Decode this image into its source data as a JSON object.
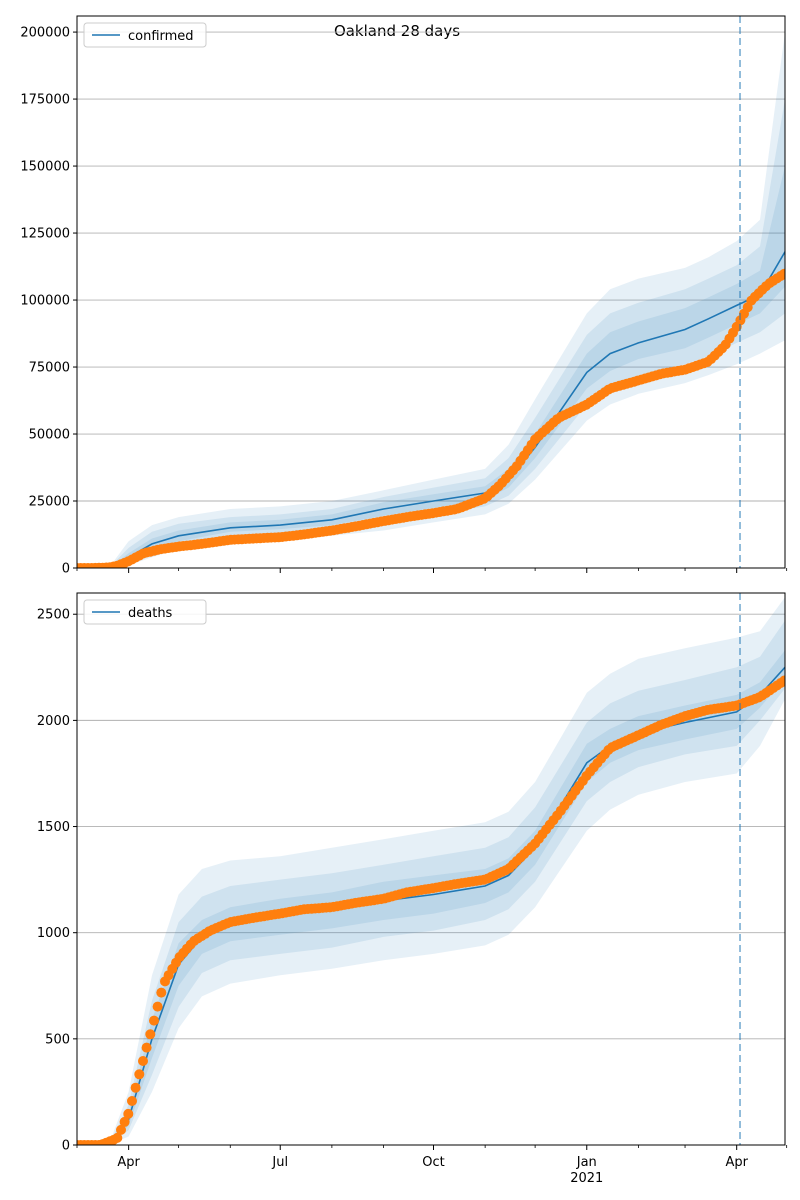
{
  "title": "Oakland 28 days",
  "colors": {
    "model": "#1f77b4",
    "observed": "#ff7f0e",
    "band": "#1f77b4",
    "grid": "#b0b0b0",
    "forecast_line": "#1f77b4"
  },
  "x_axis": {
    "start": "2020-03-01",
    "end": "2021-04-30",
    "major_ticks": [
      {
        "date": "2020-04-01",
        "label": "Apr",
        "sublabel": ""
      },
      {
        "date": "2020-07-01",
        "label": "Jul",
        "sublabel": ""
      },
      {
        "date": "2020-10-01",
        "label": "Oct",
        "sublabel": ""
      },
      {
        "date": "2021-01-01",
        "label": "Jan",
        "sublabel": "2021"
      },
      {
        "date": "2021-04-01",
        "label": "Apr",
        "sublabel": ""
      }
    ],
    "minor_ticks": [
      "2020-03-01",
      "2020-05-01",
      "2020-06-01",
      "2020-08-01",
      "2020-09-01",
      "2020-11-01",
      "2020-12-01",
      "2021-02-01",
      "2021-03-01",
      "2021-05-01"
    ]
  },
  "forecast_date": "2021-04-03",
  "chart_data": [
    {
      "type": "line",
      "legend": {
        "position": "upper-left",
        "entries": [
          "confirmed"
        ]
      },
      "ylim": [
        0,
        206000
      ],
      "yticks": [
        0,
        25000,
        50000,
        75000,
        100000,
        125000,
        150000,
        175000,
        200000
      ],
      "ytick_labels": [
        "0",
        "25000",
        "50000",
        "75000",
        "100000",
        "125000",
        "150000",
        "175000",
        "200000"
      ],
      "grid": true,
      "series": [
        {
          "name": "confirmed",
          "kind": "model",
          "x": [
            "2020-03-01",
            "2020-03-20",
            "2020-04-01",
            "2020-04-15",
            "2020-05-01",
            "2020-06-01",
            "2020-07-01",
            "2020-08-01",
            "2020-09-01",
            "2020-10-01",
            "2020-11-01",
            "2020-11-15",
            "2020-12-01",
            "2021-01-01",
            "2021-01-15",
            "2021-02-01",
            "2021-03-01",
            "2021-03-15",
            "2021-04-01",
            "2021-04-15",
            "2021-04-30"
          ],
          "y": [
            0,
            0,
            4000,
            9000,
            12000,
            15000,
            16000,
            18000,
            22000,
            25000,
            28000,
            33000,
            45000,
            73000,
            80000,
            84000,
            89000,
            93000,
            98000,
            102000,
            118000
          ],
          "bands": [
            {
              "lower": [
                0,
                0,
                1000,
                4000,
                7000,
                10000,
                11000,
                12000,
                14000,
                17000,
                20000,
                24000,
                33000,
                55000,
                61000,
                65000,
                69000,
                72000,
                76000,
                80000,
                85000
              ],
              "upper": [
                0,
                0,
                10000,
                16000,
                19000,
                22000,
                23000,
                25000,
                29000,
                33000,
                37000,
                46000,
                63000,
                95000,
                104000,
                108000,
                112000,
                116000,
                122000,
                130000,
                200000
              ]
            },
            {
              "lower": [
                0,
                0,
                2000,
                5500,
                8500,
                12000,
                13000,
                14500,
                17000,
                20000,
                23000,
                27000,
                37000,
                61000,
                67000,
                71000,
                76000,
                79000,
                84000,
                88000,
                95000
              ],
              "upper": [
                0,
                0,
                7500,
                13500,
                16500,
                19000,
                20000,
                22000,
                26500,
                30000,
                33500,
                41000,
                56000,
                87000,
                95000,
                99000,
                104000,
                108000,
                113000,
                120000,
                175000
              ]
            },
            {
              "lower": [
                0,
                0,
                3000,
                7000,
                10000,
                13500,
                14500,
                16000,
                19500,
                22500,
                25500,
                30000,
                41000,
                67000,
                73500,
                78000,
                82000,
                86000,
                91000,
                95000,
                105000
              ],
              "upper": [
                0,
                0,
                5500,
                11000,
                14000,
                17000,
                18000,
                20000,
                24500,
                27500,
                30500,
                37000,
                50000,
                80000,
                88000,
                92000,
                97000,
                101000,
                106000,
                111000,
                150000
              ]
            }
          ]
        },
        {
          "name": "",
          "kind": "observed",
          "x": [
            "2020-03-01",
            "2020-03-10",
            "2020-03-20",
            "2020-03-25",
            "2020-04-01",
            "2020-04-10",
            "2020-04-20",
            "2020-05-01",
            "2020-05-15",
            "2020-06-01",
            "2020-06-15",
            "2020-07-01",
            "2020-07-15",
            "2020-08-01",
            "2020-08-15",
            "2020-09-01",
            "2020-09-15",
            "2020-10-01",
            "2020-10-15",
            "2020-11-01",
            "2020-11-10",
            "2020-11-20",
            "2020-12-01",
            "2020-12-15",
            "2021-01-01",
            "2021-01-15",
            "2021-02-01",
            "2021-02-15",
            "2021-03-01",
            "2021-03-15",
            "2021-03-25",
            "2021-04-01",
            "2021-04-10",
            "2021-04-20",
            "2021-04-30"
          ],
          "y": [
            0,
            0,
            200,
            800,
            2500,
            5500,
            7000,
            8000,
            9000,
            10500,
            11000,
            11500,
            12500,
            14000,
            15500,
            17500,
            19000,
            20500,
            22000,
            26000,
            31000,
            38000,
            48000,
            56000,
            61000,
            67000,
            70000,
            72500,
            74000,
            77000,
            83000,
            90000,
            100000,
            106000,
            110000
          ]
        }
      ]
    },
    {
      "type": "line",
      "legend": {
        "position": "upper-left",
        "entries": [
          "deaths"
        ]
      },
      "ylim": [
        0,
        2600
      ],
      "yticks": [
        0,
        500,
        1000,
        1500,
        2000,
        2500
      ],
      "ytick_labels": [
        "0",
        "500",
        "1000",
        "1500",
        "2000",
        "2500"
      ],
      "grid": true,
      "series": [
        {
          "name": "deaths",
          "kind": "model",
          "x": [
            "2020-03-01",
            "2020-03-20",
            "2020-04-01",
            "2020-04-15",
            "2020-05-01",
            "2020-05-15",
            "2020-06-01",
            "2020-07-01",
            "2020-08-01",
            "2020-09-01",
            "2020-10-01",
            "2020-11-01",
            "2020-11-15",
            "2020-12-01",
            "2021-01-01",
            "2021-01-15",
            "2021-02-01",
            "2021-03-01",
            "2021-04-01",
            "2021-04-15",
            "2021-04-30"
          ],
          "y": [
            0,
            0,
            120,
            500,
            850,
            980,
            1040,
            1080,
            1110,
            1150,
            1180,
            1220,
            1270,
            1400,
            1800,
            1880,
            1940,
            1990,
            2040,
            2120,
            2250
          ],
          "bands": [
            {
              "lower": [
                0,
                0,
                40,
                250,
                550,
                700,
                760,
                800,
                830,
                870,
                900,
                940,
                990,
                1120,
                1480,
                1580,
                1650,
                1710,
                1750,
                1880,
                2100
              ],
              "upper": [
                0,
                0,
                250,
                800,
                1180,
                1300,
                1340,
                1360,
                1400,
                1440,
                1480,
                1520,
                1570,
                1710,
                2130,
                2220,
                2290,
                2340,
                2390,
                2420,
                2580
              ]
            },
            {
              "lower": [
                0,
                0,
                70,
                330,
                650,
                810,
                870,
                900,
                930,
                980,
                1010,
                1060,
                1110,
                1240,
                1620,
                1710,
                1780,
                1840,
                1880,
                2000,
                2150
              ],
              "upper": [
                0,
                0,
                190,
                680,
                1050,
                1170,
                1220,
                1250,
                1280,
                1320,
                1360,
                1400,
                1450,
                1590,
                1990,
                2080,
                2140,
                2190,
                2250,
                2300,
                2470
              ]
            },
            {
              "lower": [
                0,
                0,
                90,
                410,
                750,
                900,
                960,
                990,
                1020,
                1060,
                1090,
                1140,
                1190,
                1320,
                1710,
                1800,
                1860,
                1910,
                1960,
                2060,
                2200
              ],
              "upper": [
                0,
                0,
                150,
                590,
                950,
                1060,
                1120,
                1160,
                1190,
                1240,
                1270,
                1300,
                1350,
                1480,
                1890,
                1960,
                2020,
                2070,
                2120,
                2180,
                2330
              ]
            }
          ]
        },
        {
          "name": "",
          "kind": "observed",
          "x": [
            "2020-03-01",
            "2020-03-15",
            "2020-03-25",
            "2020-04-01",
            "2020-04-08",
            "2020-04-15",
            "2020-04-22",
            "2020-05-01",
            "2020-05-10",
            "2020-05-20",
            "2020-06-01",
            "2020-06-15",
            "2020-07-01",
            "2020-07-15",
            "2020-08-01",
            "2020-08-15",
            "2020-09-01",
            "2020-09-15",
            "2020-10-01",
            "2020-10-15",
            "2020-11-01",
            "2020-11-15",
            "2020-12-01",
            "2020-12-15",
            "2021-01-01",
            "2021-01-15",
            "2021-02-01",
            "2021-02-15",
            "2021-03-01",
            "2021-03-15",
            "2021-04-01",
            "2021-04-15",
            "2021-04-30"
          ],
          "y": [
            0,
            0,
            30,
            150,
            350,
            550,
            760,
            880,
            960,
            1010,
            1050,
            1070,
            1090,
            1110,
            1120,
            1140,
            1160,
            1190,
            1210,
            1230,
            1250,
            1300,
            1420,
            1560,
            1740,
            1870,
            1930,
            1980,
            2020,
            2050,
            2070,
            2110,
            2190
          ]
        }
      ]
    }
  ]
}
